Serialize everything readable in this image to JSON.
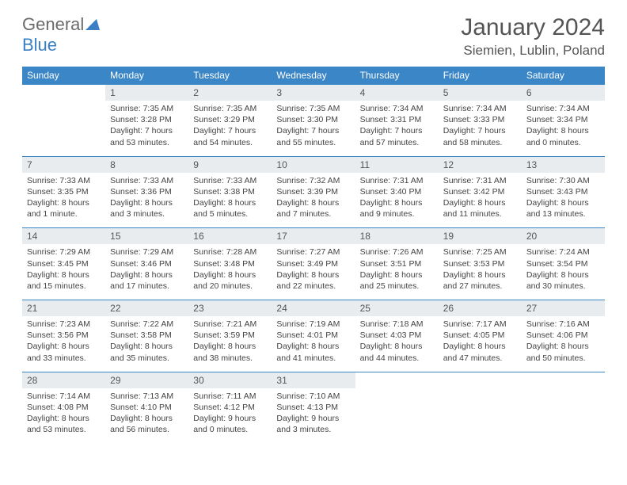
{
  "logo": {
    "word1": "General",
    "word2": "Blue"
  },
  "title": "January 2024",
  "location": "Siemien, Lublin, Poland",
  "style": {
    "header_bg": "#3b86c7",
    "header_fg": "#ffffff",
    "daynum_bg": "#e9ecef",
    "row_border": "#3b86c7",
    "text_color": "#444444",
    "title_color": "#555555",
    "logo_gray": "#6b6b6b",
    "logo_blue": "#3b7fc4",
    "body_bg": "#ffffff",
    "header_fontsize": 12,
    "daynum_fontsize": 12,
    "detail_fontsize": 10.5,
    "title_fontsize": 30,
    "location_fontsize": 17
  },
  "weekdays": [
    "Sunday",
    "Monday",
    "Tuesday",
    "Wednesday",
    "Thursday",
    "Friday",
    "Saturday"
  ],
  "weeks": [
    {
      "nums": [
        "",
        "1",
        "2",
        "3",
        "4",
        "5",
        "6"
      ],
      "cells": [
        "",
        "Sunrise: 7:35 AM\nSunset: 3:28 PM\nDaylight: 7 hours and 53 minutes.",
        "Sunrise: 7:35 AM\nSunset: 3:29 PM\nDaylight: 7 hours and 54 minutes.",
        "Sunrise: 7:35 AM\nSunset: 3:30 PM\nDaylight: 7 hours and 55 minutes.",
        "Sunrise: 7:34 AM\nSunset: 3:31 PM\nDaylight: 7 hours and 57 minutes.",
        "Sunrise: 7:34 AM\nSunset: 3:33 PM\nDaylight: 7 hours and 58 minutes.",
        "Sunrise: 7:34 AM\nSunset: 3:34 PM\nDaylight: 8 hours and 0 minutes."
      ]
    },
    {
      "nums": [
        "7",
        "8",
        "9",
        "10",
        "11",
        "12",
        "13"
      ],
      "cells": [
        "Sunrise: 7:33 AM\nSunset: 3:35 PM\nDaylight: 8 hours and 1 minute.",
        "Sunrise: 7:33 AM\nSunset: 3:36 PM\nDaylight: 8 hours and 3 minutes.",
        "Sunrise: 7:33 AM\nSunset: 3:38 PM\nDaylight: 8 hours and 5 minutes.",
        "Sunrise: 7:32 AM\nSunset: 3:39 PM\nDaylight: 8 hours and 7 minutes.",
        "Sunrise: 7:31 AM\nSunset: 3:40 PM\nDaylight: 8 hours and 9 minutes.",
        "Sunrise: 7:31 AM\nSunset: 3:42 PM\nDaylight: 8 hours and 11 minutes.",
        "Sunrise: 7:30 AM\nSunset: 3:43 PM\nDaylight: 8 hours and 13 minutes."
      ]
    },
    {
      "nums": [
        "14",
        "15",
        "16",
        "17",
        "18",
        "19",
        "20"
      ],
      "cells": [
        "Sunrise: 7:29 AM\nSunset: 3:45 PM\nDaylight: 8 hours and 15 minutes.",
        "Sunrise: 7:29 AM\nSunset: 3:46 PM\nDaylight: 8 hours and 17 minutes.",
        "Sunrise: 7:28 AM\nSunset: 3:48 PM\nDaylight: 8 hours and 20 minutes.",
        "Sunrise: 7:27 AM\nSunset: 3:49 PM\nDaylight: 8 hours and 22 minutes.",
        "Sunrise: 7:26 AM\nSunset: 3:51 PM\nDaylight: 8 hours and 25 minutes.",
        "Sunrise: 7:25 AM\nSunset: 3:53 PM\nDaylight: 8 hours and 27 minutes.",
        "Sunrise: 7:24 AM\nSunset: 3:54 PM\nDaylight: 8 hours and 30 minutes."
      ]
    },
    {
      "nums": [
        "21",
        "22",
        "23",
        "24",
        "25",
        "26",
        "27"
      ],
      "cells": [
        "Sunrise: 7:23 AM\nSunset: 3:56 PM\nDaylight: 8 hours and 33 minutes.",
        "Sunrise: 7:22 AM\nSunset: 3:58 PM\nDaylight: 8 hours and 35 minutes.",
        "Sunrise: 7:21 AM\nSunset: 3:59 PM\nDaylight: 8 hours and 38 minutes.",
        "Sunrise: 7:19 AM\nSunset: 4:01 PM\nDaylight: 8 hours and 41 minutes.",
        "Sunrise: 7:18 AM\nSunset: 4:03 PM\nDaylight: 8 hours and 44 minutes.",
        "Sunrise: 7:17 AM\nSunset: 4:05 PM\nDaylight: 8 hours and 47 minutes.",
        "Sunrise: 7:16 AM\nSunset: 4:06 PM\nDaylight: 8 hours and 50 minutes."
      ]
    },
    {
      "nums": [
        "28",
        "29",
        "30",
        "31",
        "",
        "",
        ""
      ],
      "cells": [
        "Sunrise: 7:14 AM\nSunset: 4:08 PM\nDaylight: 8 hours and 53 minutes.",
        "Sunrise: 7:13 AM\nSunset: 4:10 PM\nDaylight: 8 hours and 56 minutes.",
        "Sunrise: 7:11 AM\nSunset: 4:12 PM\nDaylight: 9 hours and 0 minutes.",
        "Sunrise: 7:10 AM\nSunset: 4:13 PM\nDaylight: 9 hours and 3 minutes.",
        "",
        "",
        ""
      ]
    }
  ]
}
